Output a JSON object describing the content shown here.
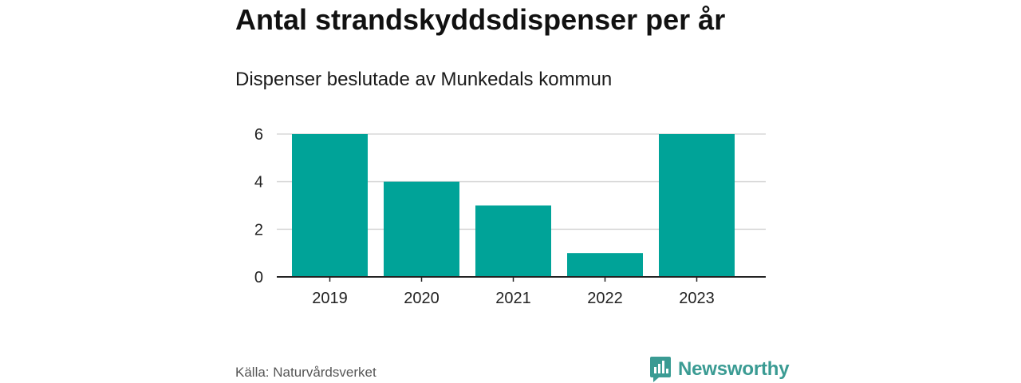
{
  "chart_data": {
    "type": "bar",
    "title": "Antal strandskyddsdispenser per år",
    "subtitle": "Dispenser beslutade av Munkedals kommun",
    "categories": [
      "2019",
      "2020",
      "2021",
      "2022",
      "2023"
    ],
    "values": [
      6,
      4,
      3,
      1,
      6
    ],
    "xlabel": "",
    "ylabel": "",
    "ylim": [
      0,
      6
    ],
    "yticks": [
      "0",
      "2",
      "4",
      "6"
    ],
    "grid": true,
    "bar_color": "#00a398"
  },
  "footer": {
    "source": "Källa: Naturvårdsverket",
    "brand": "Newsworthy",
    "brand_icon": "newsworthy-logo-icon",
    "brand_color": "#3a9b93"
  }
}
